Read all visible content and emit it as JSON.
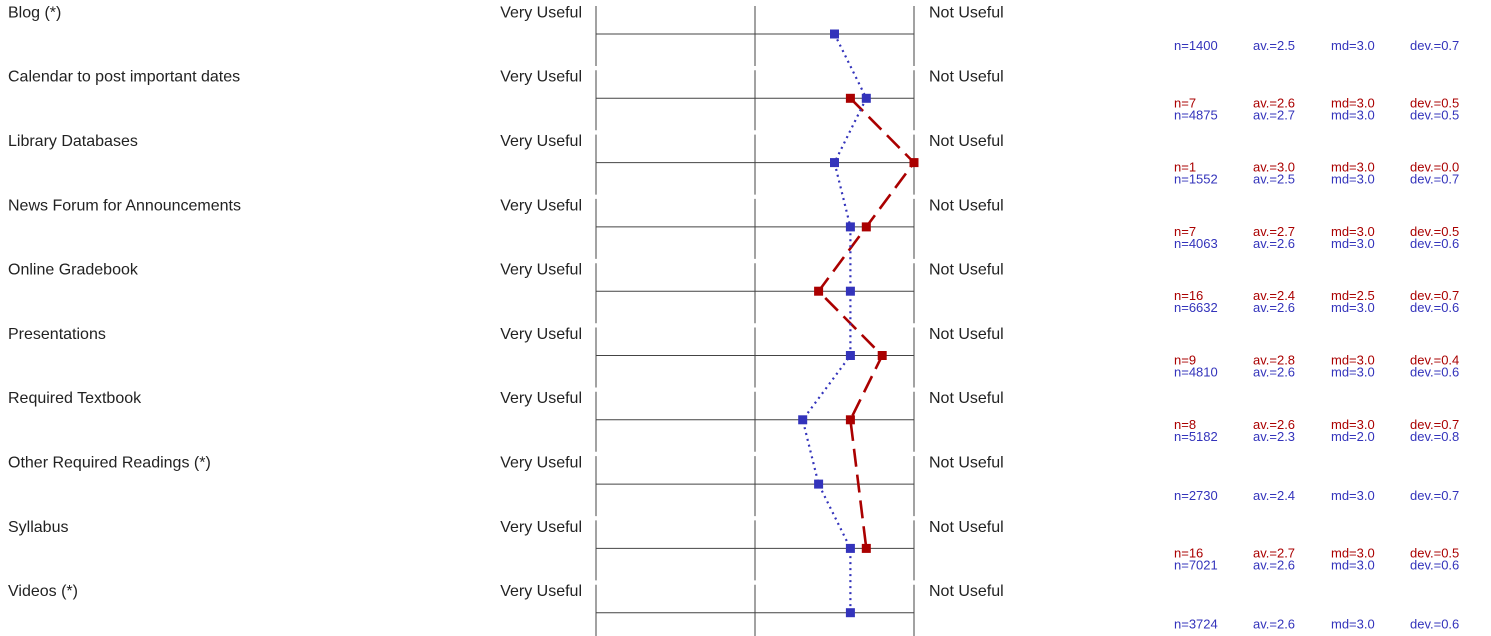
{
  "chart_data": {
    "type": "line",
    "scale": {
      "min": 1,
      "max": 3,
      "left_pole": "Very Useful",
      "right_pole": "Not Useful"
    },
    "colors": {
      "series_a": "#aa0000",
      "series_b": "#3333bb",
      "axis": "#444444"
    },
    "series": [
      {
        "key": "a",
        "line_style": "dashed"
      },
      {
        "key": "b",
        "line_style": "dotted"
      }
    ],
    "items": [
      {
        "label": "Blog (*)",
        "a": null,
        "b": {
          "n": "n=1400",
          "av": "av.=2.5",
          "md": "md=3.0",
          "dev": "dev.=0.7",
          "value": 2.5
        }
      },
      {
        "label": "Calendar to post important dates",
        "a": {
          "n": "n=7",
          "av": "av.=2.6",
          "md": "md=3.0",
          "dev": "dev.=0.5",
          "value": 2.6
        },
        "b": {
          "n": "n=4875",
          "av": "av.=2.7",
          "md": "md=3.0",
          "dev": "dev.=0.5",
          "value": 2.7
        }
      },
      {
        "label": "Library Databases",
        "a": {
          "n": "n=1",
          "av": "av.=3.0",
          "md": "md=3.0",
          "dev": "dev.=0.0",
          "value": 3.0
        },
        "b": {
          "n": "n=1552",
          "av": "av.=2.5",
          "md": "md=3.0",
          "dev": "dev.=0.7",
          "value": 2.5
        }
      },
      {
        "label": "News Forum for Announcements",
        "a": {
          "n": "n=7",
          "av": "av.=2.7",
          "md": "md=3.0",
          "dev": "dev.=0.5",
          "value": 2.7
        },
        "b": {
          "n": "n=4063",
          "av": "av.=2.6",
          "md": "md=3.0",
          "dev": "dev.=0.6",
          "value": 2.6
        }
      },
      {
        "label": "Online Gradebook",
        "a": {
          "n": "n=16",
          "av": "av.=2.4",
          "md": "md=2.5",
          "dev": "dev.=0.7",
          "value": 2.4
        },
        "b": {
          "n": "n=6632",
          "av": "av.=2.6",
          "md": "md=3.0",
          "dev": "dev.=0.6",
          "value": 2.6
        }
      },
      {
        "label": "Presentations",
        "a": {
          "n": "n=9",
          "av": "av.=2.8",
          "md": "md=3.0",
          "dev": "dev.=0.4",
          "value": 2.8
        },
        "b": {
          "n": "n=4810",
          "av": "av.=2.6",
          "md": "md=3.0",
          "dev": "dev.=0.6",
          "value": 2.6
        }
      },
      {
        "label": "Required Textbook",
        "a": {
          "n": "n=8",
          "av": "av.=2.6",
          "md": "md=3.0",
          "dev": "dev.=0.7",
          "value": 2.6
        },
        "b": {
          "n": "n=5182",
          "av": "av.=2.3",
          "md": "md=2.0",
          "dev": "dev.=0.8",
          "value": 2.3
        }
      },
      {
        "label": "Other Required Readings (*)",
        "a": null,
        "b": {
          "n": "n=2730",
          "av": "av.=2.4",
          "md": "md=3.0",
          "dev": "dev.=0.7",
          "value": 2.4
        }
      },
      {
        "label": "Syllabus",
        "a": {
          "n": "n=16",
          "av": "av.=2.7",
          "md": "md=3.0",
          "dev": "dev.=0.5",
          "value": 2.7
        },
        "b": {
          "n": "n=7021",
          "av": "av.=2.6",
          "md": "md=3.0",
          "dev": "dev.=0.6",
          "value": 2.6
        }
      },
      {
        "label": "Videos (*)",
        "a": null,
        "b": {
          "n": "n=3724",
          "av": "av.=2.6",
          "md": "md=3.0",
          "dev": "dev.=0.6",
          "value": 2.6
        }
      }
    ]
  }
}
